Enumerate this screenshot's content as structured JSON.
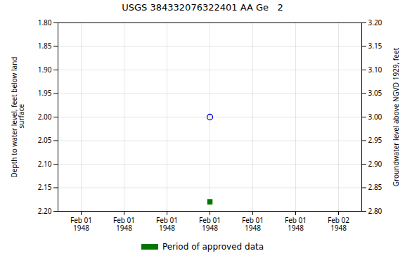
{
  "chart_data": {
    "type": "scatter",
    "title": "USGS 384332076322401 AA Ge   2",
    "ylabel": "Depth to water level, feet below land\n surface",
    "y2label": "Groundwater level above NGVD 1929, feet",
    "categories": [
      "Feb 01\n1948",
      "Feb 01\n1948",
      "Feb 01\n1948",
      "Feb 01\n1948",
      "Feb 01\n1948",
      "Feb 01\n1948",
      "Feb 02\n1948"
    ],
    "series": [
      {
        "color": "#0000cc",
        "marker": "open_circle",
        "values": [
          null,
          null,
          null,
          2.0,
          null,
          null,
          null
        ]
      },
      {
        "name": "Period of approved data",
        "color": "#007700",
        "marker": "square",
        "values": [
          null,
          null,
          null,
          2.18,
          null,
          null,
          null
        ]
      }
    ],
    "ylim": [
      2.2,
      1.8
    ],
    "yticks": [
      {
        "value": 1.8,
        "label": "1.80"
      },
      {
        "value": 1.85,
        "label": "1.85"
      },
      {
        "value": 1.9,
        "label": "1.90"
      },
      {
        "value": 1.95,
        "label": "1.95"
      },
      {
        "value": 2.0,
        "label": "2.00"
      },
      {
        "value": 2.05,
        "label": "2.05"
      },
      {
        "value": 2.1,
        "label": "2.10"
      },
      {
        "value": 2.15,
        "label": "2.15"
      },
      {
        "value": 2.2,
        "label": "2.20"
      }
    ],
    "y2lim": [
      2.8,
      3.2
    ],
    "y2ticks": [
      {
        "value": 3.2,
        "label": "3.20"
      },
      {
        "value": 3.15,
        "label": "3.15"
      },
      {
        "value": 3.1,
        "label": "3.10"
      },
      {
        "value": 3.05,
        "label": "3.05"
      },
      {
        "value": 3.0,
        "label": "3.00"
      },
      {
        "value": 2.95,
        "label": "2.95"
      },
      {
        "value": 2.9,
        "label": "2.90"
      },
      {
        "value": 2.85,
        "label": "2.85"
      },
      {
        "value": 2.8,
        "label": "2.80"
      }
    ],
    "grid": true,
    "legend": "bottom"
  }
}
